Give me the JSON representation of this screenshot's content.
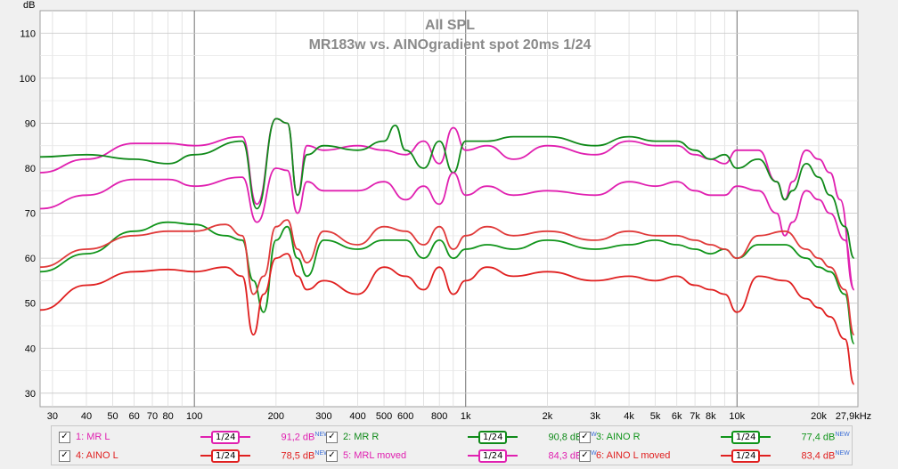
{
  "chart_data": {
    "type": "line",
    "title": "All SPL",
    "subtitle": "MR183w vs. AINOgradient spot 20ms 1/24",
    "ylabel": "dB",
    "ylim": [
      27,
      115
    ],
    "xlim": [
      27,
      27900
    ],
    "x_scale": "log",
    "grid": true,
    "y_ticks": [
      30,
      40,
      50,
      60,
      70,
      80,
      90,
      100,
      110
    ],
    "y_tick_labels": [
      "30",
      "40",
      "50",
      "60",
      "70",
      "80",
      "90",
      "100",
      "110"
    ],
    "x_ticks": [
      30,
      40,
      50,
      60,
      70,
      80,
      100,
      200,
      300,
      400,
      500,
      600,
      800,
      1000,
      2000,
      3000,
      4000,
      5000,
      6000,
      7000,
      8000,
      10000,
      20000,
      27900
    ],
    "x_tick_labels": [
      "30",
      "40",
      "50",
      "60",
      "70",
      "80",
      "100",
      "200",
      "300",
      "400",
      "500",
      "600",
      "800",
      "1k",
      "2k",
      "3k",
      "4k",
      "5k",
      "6k",
      "7k",
      "8k",
      "10k",
      "20k",
      "27,9kHz"
    ],
    "series": [
      {
        "name": "1: MR L",
        "color": "#e020b0",
        "points": [
          [
            27,
            79
          ],
          [
            40,
            82
          ],
          [
            60,
            85.5
          ],
          [
            80,
            85.5
          ],
          [
            100,
            85
          ],
          [
            150,
            87
          ],
          [
            170,
            72
          ],
          [
            200,
            91
          ],
          [
            220,
            90
          ],
          [
            240,
            74
          ],
          [
            260,
            85
          ],
          [
            300,
            84
          ],
          [
            400,
            85
          ],
          [
            500,
            84
          ],
          [
            600,
            83
          ],
          [
            700,
            86
          ],
          [
            800,
            81
          ],
          [
            900,
            89
          ],
          [
            1000,
            84
          ],
          [
            1200,
            85
          ],
          [
            1500,
            82
          ],
          [
            2000,
            85
          ],
          [
            3000,
            83
          ],
          [
            4000,
            86
          ],
          [
            5000,
            85
          ],
          [
            6000,
            85
          ],
          [
            7000,
            83
          ],
          [
            8000,
            82
          ],
          [
            9000,
            81
          ],
          [
            10000,
            84
          ],
          [
            12000,
            84
          ],
          [
            14000,
            77
          ],
          [
            15000,
            73
          ],
          [
            16000,
            77
          ],
          [
            18000,
            84
          ],
          [
            20000,
            82
          ],
          [
            22000,
            79
          ],
          [
            24000,
            73
          ],
          [
            27000,
            53
          ]
        ]
      },
      {
        "name": "2: MR R",
        "color": "#108a1a",
        "points": [
          [
            27,
            82.5
          ],
          [
            40,
            83
          ],
          [
            60,
            82
          ],
          [
            80,
            81
          ],
          [
            100,
            83
          ],
          [
            150,
            86
          ],
          [
            170,
            71
          ],
          [
            200,
            91
          ],
          [
            220,
            90
          ],
          [
            240,
            74
          ],
          [
            260,
            83
          ],
          [
            300,
            85
          ],
          [
            400,
            84
          ],
          [
            500,
            86
          ],
          [
            550,
            89.5
          ],
          [
            600,
            84
          ],
          [
            700,
            80
          ],
          [
            800,
            86
          ],
          [
            900,
            79
          ],
          [
            1000,
            86
          ],
          [
            1200,
            86
          ],
          [
            1500,
            87
          ],
          [
            2000,
            87
          ],
          [
            3000,
            85
          ],
          [
            4000,
            87
          ],
          [
            5000,
            86
          ],
          [
            6000,
            86
          ],
          [
            7000,
            84
          ],
          [
            8000,
            82
          ],
          [
            9000,
            83
          ],
          [
            10000,
            80
          ],
          [
            12000,
            82
          ],
          [
            14000,
            77
          ],
          [
            15000,
            73
          ],
          [
            16000,
            75
          ],
          [
            18000,
            81
          ],
          [
            20000,
            78
          ],
          [
            22000,
            74
          ],
          [
            25000,
            67
          ],
          [
            27000,
            60
          ]
        ]
      },
      {
        "name": "3: AINO R",
        "color": "#10941a",
        "points": [
          [
            27,
            57
          ],
          [
            40,
            61
          ],
          [
            60,
            66
          ],
          [
            80,
            68
          ],
          [
            100,
            67.5
          ],
          [
            130,
            65
          ],
          [
            150,
            64
          ],
          [
            165,
            55
          ],
          [
            180,
            48
          ],
          [
            200,
            64
          ],
          [
            220,
            67
          ],
          [
            240,
            60
          ],
          [
            260,
            56
          ],
          [
            300,
            64
          ],
          [
            400,
            62
          ],
          [
            500,
            64
          ],
          [
            600,
            64
          ],
          [
            700,
            60
          ],
          [
            800,
            64
          ],
          [
            900,
            60
          ],
          [
            1000,
            62
          ],
          [
            1200,
            63
          ],
          [
            1500,
            62
          ],
          [
            2000,
            64
          ],
          [
            3000,
            62
          ],
          [
            4000,
            63
          ],
          [
            5000,
            64
          ],
          [
            6000,
            63
          ],
          [
            7000,
            62
          ],
          [
            8000,
            61
          ],
          [
            9000,
            62
          ],
          [
            10000,
            60
          ],
          [
            12000,
            63
          ],
          [
            15000,
            63
          ],
          [
            18000,
            60
          ],
          [
            20000,
            58
          ],
          [
            22000,
            57
          ],
          [
            25000,
            52
          ],
          [
            27000,
            41
          ]
        ]
      },
      {
        "name": "4: AINO L",
        "color": "#e02020",
        "points": [
          [
            27,
            48.5
          ],
          [
            40,
            54
          ],
          [
            60,
            57
          ],
          [
            80,
            57.5
          ],
          [
            100,
            57
          ],
          [
            130,
            58
          ],
          [
            150,
            56
          ],
          [
            165,
            43
          ],
          [
            180,
            52
          ],
          [
            200,
            60
          ],
          [
            220,
            61
          ],
          [
            240,
            56
          ],
          [
            260,
            53
          ],
          [
            300,
            55
          ],
          [
            400,
            52
          ],
          [
            500,
            58
          ],
          [
            600,
            56
          ],
          [
            700,
            53
          ],
          [
            800,
            58
          ],
          [
            900,
            52
          ],
          [
            1000,
            55
          ],
          [
            1200,
            58
          ],
          [
            1500,
            56
          ],
          [
            2000,
            57
          ],
          [
            3000,
            55
          ],
          [
            4000,
            56
          ],
          [
            5000,
            55
          ],
          [
            6000,
            56
          ],
          [
            7000,
            54
          ],
          [
            8000,
            53
          ],
          [
            9000,
            52
          ],
          [
            10000,
            48
          ],
          [
            12000,
            56
          ],
          [
            15000,
            55
          ],
          [
            18000,
            51
          ],
          [
            20000,
            49
          ],
          [
            22000,
            47
          ],
          [
            25000,
            42
          ],
          [
            27000,
            32
          ]
        ]
      },
      {
        "name": "5: MRL moved",
        "color": "#e020b0",
        "points": [
          [
            27,
            71
          ],
          [
            40,
            74
          ],
          [
            60,
            77.5
          ],
          [
            80,
            77.5
          ],
          [
            100,
            76
          ],
          [
            150,
            78
          ],
          [
            170,
            68
          ],
          [
            200,
            80
          ],
          [
            220,
            79.5
          ],
          [
            240,
            70
          ],
          [
            260,
            77
          ],
          [
            300,
            75
          ],
          [
            400,
            75
          ],
          [
            500,
            77
          ],
          [
            600,
            73
          ],
          [
            700,
            76
          ],
          [
            800,
            72
          ],
          [
            900,
            79
          ],
          [
            1000,
            74
          ],
          [
            1200,
            76
          ],
          [
            1500,
            74
          ],
          [
            2000,
            75
          ],
          [
            3000,
            74
          ],
          [
            4000,
            77
          ],
          [
            5000,
            76
          ],
          [
            6000,
            77
          ],
          [
            7000,
            75
          ],
          [
            8000,
            74
          ],
          [
            9000,
            74
          ],
          [
            10000,
            76
          ],
          [
            12000,
            75
          ],
          [
            14000,
            70
          ],
          [
            15000,
            65
          ],
          [
            16000,
            68
          ],
          [
            18000,
            75
          ],
          [
            20000,
            73
          ],
          [
            22000,
            70
          ],
          [
            25000,
            64
          ],
          [
            27000,
            53
          ]
        ]
      },
      {
        "name": "6: AINO L moved",
        "color": "#e03a3a",
        "points": [
          [
            27,
            58
          ],
          [
            40,
            62
          ],
          [
            60,
            65
          ],
          [
            80,
            66
          ],
          [
            100,
            66
          ],
          [
            130,
            67.5
          ],
          [
            150,
            65
          ],
          [
            165,
            52
          ],
          [
            180,
            56
          ],
          [
            200,
            67
          ],
          [
            220,
            68.5
          ],
          [
            240,
            62
          ],
          [
            260,
            59
          ],
          [
            300,
            66
          ],
          [
            400,
            63
          ],
          [
            500,
            67
          ],
          [
            600,
            66
          ],
          [
            700,
            63
          ],
          [
            800,
            67
          ],
          [
            900,
            62
          ],
          [
            1000,
            65
          ],
          [
            1200,
            67
          ],
          [
            1500,
            65
          ],
          [
            2000,
            66
          ],
          [
            3000,
            64
          ],
          [
            4000,
            66
          ],
          [
            5000,
            65
          ],
          [
            6000,
            65
          ],
          [
            7000,
            64
          ],
          [
            8000,
            63
          ],
          [
            9000,
            62
          ],
          [
            10000,
            60
          ],
          [
            12000,
            65
          ],
          [
            15000,
            66
          ],
          [
            18000,
            62
          ],
          [
            20000,
            60
          ],
          [
            22000,
            58
          ],
          [
            25000,
            53
          ],
          [
            27000,
            43
          ]
        ]
      }
    ]
  },
  "legend": {
    "items": [
      {
        "label": "1: MR L",
        "smoothing": "1/24",
        "value": "91,2 dB",
        "new": "NEW",
        "color": "#e020b0",
        "checked": "✓"
      },
      {
        "label": "2: MR R",
        "smoothing": "1/24",
        "value": "90,8 dB",
        "new": "NEW",
        "color": "#108a1a",
        "checked": "✓"
      },
      {
        "label": "3: AINO R",
        "smoothing": "1/24",
        "value": "77,4 dB",
        "new": "NEW",
        "color": "#10941a",
        "checked": "✓"
      },
      {
        "label": "4: AINO L",
        "smoothing": "1/24",
        "value": "78,5 dB",
        "new": "NEW",
        "color": "#e02020",
        "checked": "✓"
      },
      {
        "label": "5: MRL moved",
        "smoothing": "1/24",
        "value": "84,3 dB",
        "new": "NEW",
        "color": "#e020b0",
        "checked": "✓"
      },
      {
        "label": "6: AINO L moved",
        "smoothing": "1/24",
        "value": "83,4 dB",
        "new": "NEW",
        "color": "#e02020",
        "checked": "✓"
      }
    ]
  }
}
